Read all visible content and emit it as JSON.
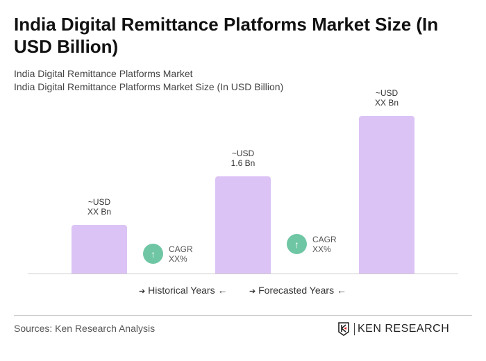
{
  "title": "India Digital Remittance Platforms Market Size (In USD Billion)",
  "subtitle1": "India Digital Remittance Platforms Market",
  "subtitle2": "India Digital Remittance Platforms Market Size (In USD Billion)",
  "chart_data": {
    "type": "bar",
    "categories": [
      "",
      "",
      ""
    ],
    "values": [
      0.8,
      1.6,
      2.6
    ],
    "data_labels": [
      [
        "~USD",
        "XX Bn"
      ],
      [
        "~USD",
        "1.6 Bn"
      ],
      [
        "~USD",
        "XX Bn"
      ]
    ],
    "bar_color": "#dcc3f6",
    "cagr": [
      {
        "label": "CAGR",
        "value": "XX%"
      },
      {
        "label": "CAGR",
        "value": "XX%"
      }
    ],
    "cagr_color": "#6fc6a4",
    "legend": [
      "Historical Years",
      "Forecasted Years"
    ],
    "grid": false
  },
  "sources": "Sources: Ken Research Analysis",
  "logo_text": "KEN RESEARCH"
}
